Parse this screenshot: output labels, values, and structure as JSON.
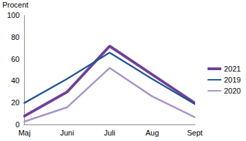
{
  "chart_data": {
    "type": "line",
    "y_label": "Procent",
    "categories": [
      "Maj",
      "Juni",
      "Juli",
      "Aug",
      "Sept"
    ],
    "series": [
      {
        "name": "2021",
        "color": "#70409a",
        "values": [
          8,
          30,
          72,
          46,
          20
        ]
      },
      {
        "name": "2019",
        "color": "#1f5597",
        "values": [
          20,
          42,
          66,
          42,
          19
        ]
      },
      {
        "name": "2020",
        "color": "#a592c8",
        "values": [
          3,
          16,
          52,
          26,
          7
        ]
      }
    ],
    "ylim": [
      0,
      100
    ],
    "yticks": [
      0,
      20,
      40,
      60,
      80,
      100
    ],
    "grid": false,
    "legend": "right"
  }
}
